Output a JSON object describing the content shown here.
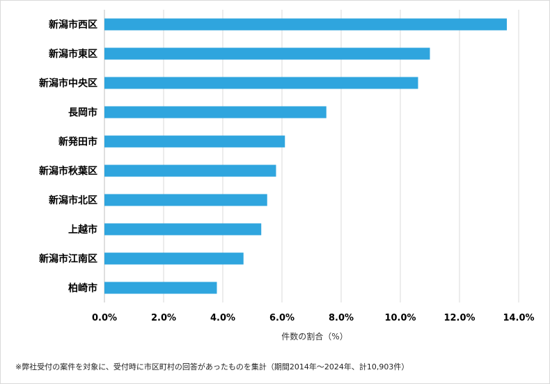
{
  "chart_data": {
    "type": "bar",
    "orientation": "horizontal",
    "categories": [
      "新潟市西区",
      "新潟市東区",
      "新潟市中央区",
      "長岡市",
      "新発田市",
      "新潟市秋葉区",
      "新潟市北区",
      "上越市",
      "新潟市江南区",
      "柏崎市"
    ],
    "values": [
      13.6,
      11.0,
      10.6,
      7.5,
      6.1,
      5.8,
      5.5,
      5.3,
      4.7,
      3.8
    ],
    "unit": "%",
    "xlim": [
      0,
      14
    ],
    "xticks": [
      0,
      2,
      4,
      6,
      8,
      10,
      12,
      14
    ],
    "xtick_labels": [
      "0.0%",
      "2.0%",
      "4.0%",
      "6.0%",
      "8.0%",
      "10.0%",
      "12.0%",
      "14.0%"
    ],
    "xlabel": "件数の割合（%）",
    "grid": "vertical",
    "bar_color": "#2FA5DE"
  },
  "footnote": "※弊社受付の案件を対象に、受付時に市区町村の回答があったものを集計（期間2014年～2024年、計10,903件）"
}
